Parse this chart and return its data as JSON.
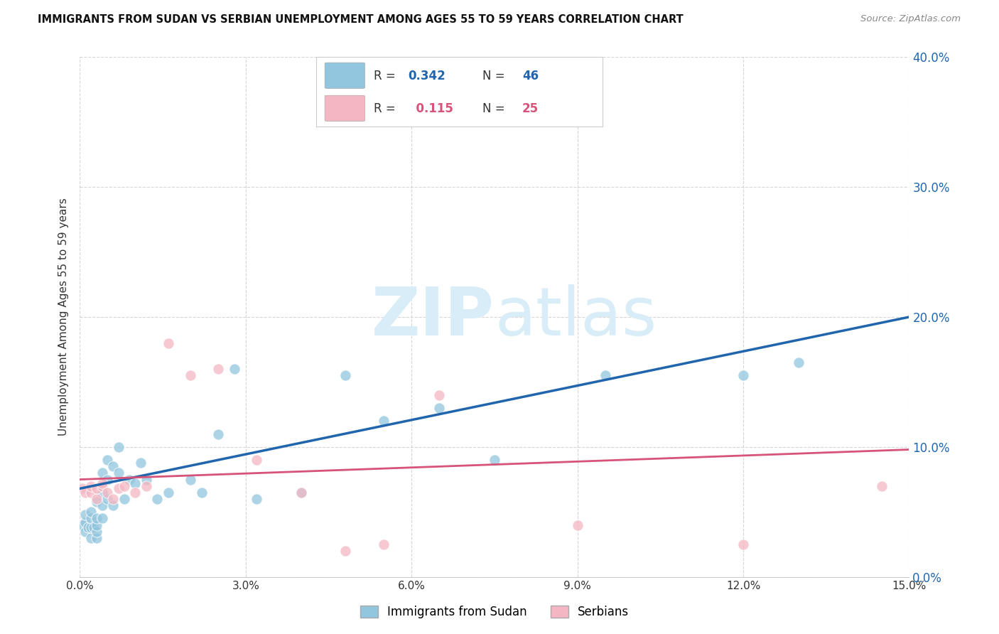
{
  "title": "IMMIGRANTS FROM SUDAN VS SERBIAN UNEMPLOYMENT AMONG AGES 55 TO 59 YEARS CORRELATION CHART",
  "source": "Source: ZipAtlas.com",
  "ylabel": "Unemployment Among Ages 55 to 59 years",
  "xlim": [
    0.0,
    0.15
  ],
  "ylim": [
    0.0,
    0.4
  ],
  "xticks": [
    0.0,
    0.03,
    0.06,
    0.09,
    0.12,
    0.15
  ],
  "yticks": [
    0.0,
    0.1,
    0.2,
    0.3,
    0.4
  ],
  "blue_r": 0.342,
  "blue_n": 46,
  "pink_r": 0.115,
  "pink_n": 25,
  "blue_color": "#92c5de",
  "pink_color": "#f4b6c2",
  "blue_line_color": "#2166ac",
  "pink_line_color": "#d6537a",
  "accent_blue": "#2166ac",
  "accent_pink": "#d6537a",
  "legend_label_blue": "Immigrants from Sudan",
  "legend_label_pink": "Serbians",
  "watermark_color": "#d8edf8",
  "blue_x": [
    0.0005,
    0.001,
    0.001,
    0.001,
    0.0015,
    0.002,
    0.002,
    0.002,
    0.002,
    0.0025,
    0.003,
    0.003,
    0.003,
    0.003,
    0.003,
    0.004,
    0.004,
    0.004,
    0.004,
    0.005,
    0.005,
    0.005,
    0.006,
    0.006,
    0.007,
    0.007,
    0.008,
    0.009,
    0.01,
    0.011,
    0.012,
    0.014,
    0.016,
    0.02,
    0.022,
    0.025,
    0.028,
    0.032,
    0.04,
    0.048,
    0.055,
    0.065,
    0.075,
    0.095,
    0.12,
    0.13
  ],
  "blue_y": [
    0.04,
    0.035,
    0.042,
    0.048,
    0.038,
    0.03,
    0.038,
    0.045,
    0.05,
    0.038,
    0.03,
    0.035,
    0.04,
    0.058,
    0.045,
    0.065,
    0.08,
    0.055,
    0.045,
    0.09,
    0.075,
    0.06,
    0.085,
    0.055,
    0.1,
    0.08,
    0.06,
    0.075,
    0.072,
    0.088,
    0.075,
    0.06,
    0.065,
    0.075,
    0.065,
    0.11,
    0.16,
    0.06,
    0.065,
    0.155,
    0.12,
    0.13,
    0.09,
    0.155,
    0.155,
    0.165
  ],
  "pink_x": [
    0.0005,
    0.001,
    0.002,
    0.002,
    0.003,
    0.003,
    0.004,
    0.004,
    0.005,
    0.006,
    0.007,
    0.008,
    0.01,
    0.012,
    0.016,
    0.02,
    0.025,
    0.032,
    0.04,
    0.048,
    0.055,
    0.065,
    0.09,
    0.12,
    0.145
  ],
  "pink_y": [
    0.068,
    0.065,
    0.065,
    0.07,
    0.06,
    0.068,
    0.07,
    0.072,
    0.065,
    0.06,
    0.068,
    0.07,
    0.065,
    0.07,
    0.18,
    0.155,
    0.16,
    0.09,
    0.065,
    0.02,
    0.025,
    0.14,
    0.04,
    0.025,
    0.07
  ]
}
